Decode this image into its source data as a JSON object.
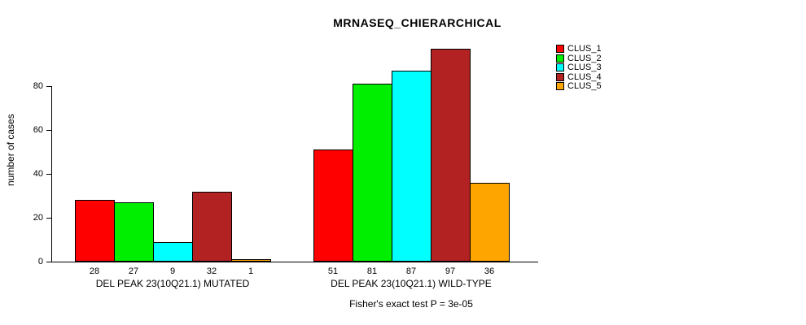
{
  "chart_data": {
    "type": "bar",
    "title": "MRNASEQ_CHIERARCHICAL",
    "ylabel": "number of cases",
    "xlabel": "",
    "yticks": [
      0,
      20,
      40,
      60,
      80
    ],
    "ylim": [
      0,
      100
    ],
    "grid": false,
    "legend_position": "right",
    "series": [
      "CLUS_1",
      "CLUS_2",
      "CLUS_3",
      "CLUS_4",
      "CLUS_5"
    ],
    "colors": [
      "#FF0000",
      "#00EE00",
      "#00FFFF",
      "#B22222",
      "#FFA500"
    ],
    "groups": [
      {
        "label": "DEL PEAK 23(10Q21.1) MUTATED",
        "values": [
          28,
          27,
          9,
          32,
          1
        ]
      },
      {
        "label": "DEL PEAK 23(10Q21.1) WILD-TYPE",
        "values": [
          51,
          81,
          87,
          97,
          36
        ]
      }
    ],
    "annotation": "Fisher's exact test P = 3e-05"
  }
}
